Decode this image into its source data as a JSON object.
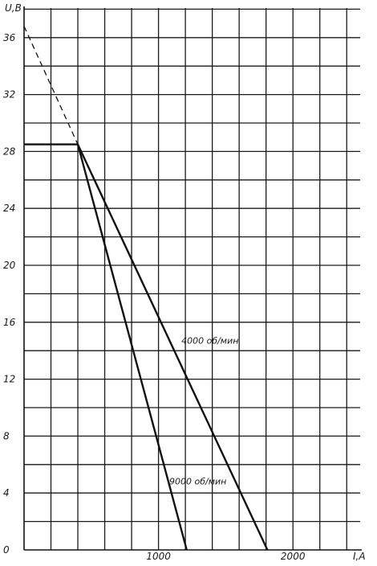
{
  "chart_data": {
    "type": "line",
    "xlabel": "I,A",
    "ylabel": "U,B",
    "xlim": [
      0,
      2500
    ],
    "ylim": [
      0,
      38
    ],
    "x_ticks": [
      1000,
      2000
    ],
    "y_ticks": [
      0,
      4,
      8,
      12,
      16,
      20,
      24,
      28,
      32,
      36
    ],
    "grid": true,
    "series": [
      {
        "name": "4000 об/мин",
        "style": "solid",
        "points": [
          [
            0,
            28.5
          ],
          [
            400,
            28.5
          ],
          [
            1810,
            0
          ]
        ]
      },
      {
        "name": "9000 об/мин",
        "style": "solid",
        "points": [
          [
            400,
            28.5
          ],
          [
            1210,
            0
          ]
        ]
      },
      {
        "name": "",
        "style": "dashed",
        "points": [
          [
            0,
            36.8
          ],
          [
            400,
            28.5
          ]
        ]
      }
    ],
    "annotations": [
      {
        "text": "4000 об/мин",
        "x": 1170,
        "y": 14.5
      },
      {
        "text": "9000 об/мин",
        "x": 1080,
        "y": 4.6
      }
    ]
  }
}
